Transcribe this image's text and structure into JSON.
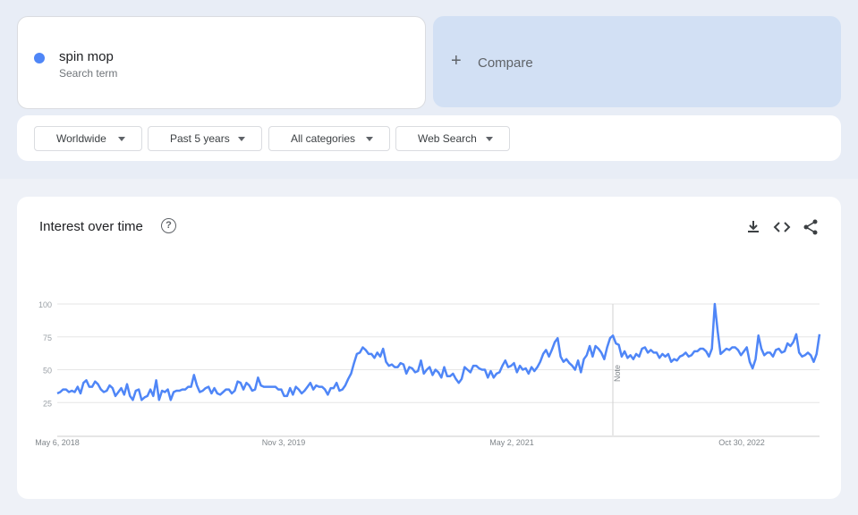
{
  "search_term": {
    "name": "spin mop",
    "subtitle": "Search term",
    "color": "#4f86f7"
  },
  "compare": {
    "icon": "plus-icon",
    "label": "Compare"
  },
  "filters": [
    {
      "label": "Worldwide"
    },
    {
      "label": "Past 5 years"
    },
    {
      "label": "All categories"
    },
    {
      "label": "Web Search"
    }
  ],
  "chart_card": {
    "title": "Interest over time",
    "help_icon": "?",
    "actions": [
      "download-icon",
      "embed-code-icon",
      "share-icon"
    ]
  },
  "chart_data": {
    "type": "line",
    "title": "Interest over time",
    "ylim": [
      0,
      100
    ],
    "yticks": [
      25,
      50,
      75,
      100
    ],
    "xtick_labels": [
      "May 6, 2018",
      "Nov 3, 2019",
      "May 2, 2021",
      "Oct 30, 2022"
    ],
    "x_range": [
      "May 6, 2018",
      "Apr 2023"
    ],
    "grid": true,
    "annotation": {
      "label": "Note",
      "approx_date": "early 2022"
    },
    "series": [
      {
        "color": "#4f86f7",
        "values": [
          32,
          33,
          35,
          35,
          33,
          34,
          33,
          37,
          32,
          40,
          42,
          37,
          37,
          41,
          39,
          35,
          33,
          34,
          38,
          36,
          30,
          33,
          36,
          31,
          39,
          30,
          27,
          34,
          35,
          27,
          29,
          30,
          35,
          30,
          42,
          27,
          34,
          33,
          35,
          27,
          33,
          34,
          34,
          35,
          35,
          37,
          37,
          46,
          38,
          33,
          34,
          36,
          37,
          32,
          36,
          32,
          31,
          33,
          35,
          35,
          32,
          34,
          41,
          40,
          35,
          40,
          38,
          34,
          35,
          44,
          38,
          37,
          37,
          37,
          37,
          37,
          35,
          35,
          30,
          30,
          36,
          31,
          37,
          35,
          32,
          34,
          37,
          40,
          35,
          38,
          37,
          37,
          35,
          31,
          36,
          36,
          40,
          34,
          35,
          38,
          43,
          47,
          55,
          62,
          63,
          67,
          65,
          62,
          62,
          59,
          63,
          60,
          66,
          56,
          53,
          54,
          52,
          52,
          55,
          54,
          47,
          52,
          51,
          48,
          49,
          57,
          47,
          50,
          52,
          46,
          50,
          48,
          44,
          52,
          45,
          45,
          47,
          43,
          40,
          43,
          52,
          50,
          48,
          53,
          53,
          51,
          50,
          50,
          44,
          49,
          44,
          47,
          48,
          53,
          57,
          52,
          53,
          55,
          48,
          53,
          50,
          51,
          47,
          52,
          49,
          52,
          56,
          62,
          65,
          60,
          65,
          71,
          74,
          60,
          56,
          58,
          55,
          53,
          50,
          57,
          48,
          58,
          61,
          68,
          60,
          68,
          66,
          63,
          58,
          67,
          74,
          76,
          70,
          69,
          60,
          64,
          59,
          61,
          58,
          62,
          60,
          66,
          67,
          63,
          65,
          63,
          63,
          59,
          62,
          60,
          62,
          56,
          58,
          57,
          60,
          61,
          63,
          60,
          61,
          64,
          64,
          66,
          66,
          64,
          60,
          66,
          100,
          79,
          62,
          64,
          66,
          65,
          67,
          67,
          65,
          61,
          64,
          67,
          56,
          51,
          58,
          76,
          66,
          61,
          63,
          63,
          60,
          65,
          66,
          63,
          64,
          70,
          68,
          71,
          77,
          63,
          60,
          61,
          63,
          61,
          56,
          62,
          77
        ]
      }
    ]
  }
}
